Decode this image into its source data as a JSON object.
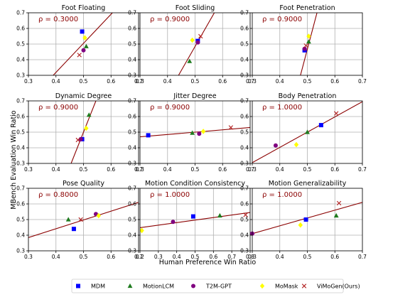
{
  "figure": {
    "xlabel": "Human Preference Win Ratio",
    "ylabel": "MBench Evaluation Win Ratio"
  },
  "legend": [
    {
      "name": "MDM",
      "marker": "square",
      "color": "#0000ff"
    },
    {
      "name": "MotionLCM",
      "marker": "triangle",
      "color": "#1e7b1e"
    },
    {
      "name": "T2M-GPT",
      "marker": "circle",
      "color": "#800080"
    },
    {
      "name": "MoMask",
      "marker": "diamond",
      "color": "#ffff00"
    },
    {
      "name": "ViMoGen(Ours)",
      "marker": "x",
      "color": "#b22222"
    }
  ],
  "line_color": "#8b0000",
  "chart_data": [
    {
      "type": "scatter",
      "title": "Foot Floating",
      "rho": "ρ = 0.3000",
      "xlim": [
        0.3,
        0.7
      ],
      "ylim": [
        0.3,
        0.7
      ],
      "xticks": [
        "0.3",
        "0.4",
        "0.5",
        "0.6",
        "0.7"
      ],
      "yticks": [
        "0.3",
        "0.4",
        "0.5",
        "0.6",
        "0.7"
      ],
      "points": {
        "MDM": [
          0.495,
          0.58
        ],
        "MotionLCM": [
          0.51,
          0.485
        ],
        "T2M-GPT": [
          0.5,
          0.46
        ],
        "MoMask": [
          0.505,
          0.54
        ],
        "ViMoGen(Ours)": [
          0.485,
          0.43
        ]
      },
      "fit": [
        [
          0.39,
          0.3
        ],
        [
          0.605,
          0.7
        ]
      ]
    },
    {
      "type": "scatter",
      "title": "Foot Sliding",
      "rho": "ρ = 0.9000",
      "xlim": [
        0.3,
        0.7
      ],
      "ylim": [
        0.3,
        0.7
      ],
      "xticks": [
        "0.3",
        "0.4",
        "0.5",
        "0.6",
        "0.7"
      ],
      "yticks": [
        "0.3",
        "0.4",
        "0.5",
        "0.6",
        "0.7"
      ],
      "points": {
        "MDM": [
          0.51,
          0.52
        ],
        "MotionLCM": [
          0.48,
          0.39
        ],
        "T2M-GPT": [
          0.51,
          0.51
        ],
        "MoMask": [
          0.49,
          0.525
        ],
        "ViMoGen(Ours)": [
          0.52,
          0.55
        ]
      },
      "fit": [
        [
          0.44,
          0.3
        ],
        [
          0.57,
          0.7
        ]
      ]
    },
    {
      "type": "scatter",
      "title": "Foot Penetration",
      "rho": "ρ = 0.9000",
      "xlim": [
        0.3,
        0.7
      ],
      "ylim": [
        0.3,
        0.7
      ],
      "xticks": [
        "0.3",
        "0.4",
        "0.5",
        "0.6",
        "0.7"
      ],
      "yticks": [
        "0.3",
        "0.4",
        "0.5",
        "0.6",
        "0.7"
      ],
      "points": {
        "MDM": [
          0.49,
          0.46
        ],
        "MotionLCM": [
          0.505,
          0.515
        ],
        "T2M-GPT": [
          0.49,
          0.47
        ],
        "MoMask": [
          0.505,
          0.55
        ],
        "ViMoGen(Ours)": [
          0.495,
          0.49
        ]
      },
      "fit": [
        [
          0.475,
          0.3
        ],
        [
          0.535,
          0.7
        ]
      ]
    },
    {
      "type": "scatter",
      "title": "Dynamic Degree",
      "rho": "ρ = 0.9000",
      "xlim": [
        0.3,
        0.7
      ],
      "ylim": [
        0.3,
        0.7
      ],
      "xticks": [
        "0.3",
        "0.4",
        "0.5",
        "0.6",
        "0.7"
      ],
      "yticks": [
        "0.3",
        "0.4",
        "0.5",
        "0.6",
        "0.7"
      ],
      "points": {
        "MDM": [
          0.495,
          0.455
        ],
        "MotionLCM": [
          0.52,
          0.61
        ],
        "T2M-GPT": [
          0.49,
          0.455
        ],
        "MoMask": [
          0.51,
          0.525
        ],
        "ViMoGen(Ours)": [
          0.48,
          0.45
        ]
      },
      "fit": [
        [
          0.455,
          0.3
        ],
        [
          0.545,
          0.7
        ]
      ]
    },
    {
      "type": "scatter",
      "title": "Jitter Degree",
      "rho": "ρ = 0.9000",
      "xlim": [
        0.3,
        0.7
      ],
      "ylim": [
        0.3,
        0.7
      ],
      "xticks": [
        "0.3",
        "0.4",
        "0.5",
        "0.6",
        "0.7"
      ],
      "yticks": [
        "0.3",
        "0.4",
        "0.5",
        "0.6",
        "0.7"
      ],
      "points": {
        "MDM": [
          0.33,
          0.48
        ],
        "MotionLCM": [
          0.49,
          0.495
        ],
        "T2M-GPT": [
          0.515,
          0.49
        ],
        "MoMask": [
          0.53,
          0.505
        ],
        "ViMoGen(Ours)": [
          0.63,
          0.53
        ]
      },
      "fit": [
        [
          0.3,
          0.47
        ],
        [
          0.7,
          0.53
        ]
      ]
    },
    {
      "type": "scatter",
      "title": "Body Penetration",
      "rho": "ρ = 1.0000",
      "xlim": [
        0.3,
        0.7
      ],
      "ylim": [
        0.3,
        0.7
      ],
      "xticks": [
        "0.3",
        "0.4",
        "0.5",
        "0.6",
        "0.7"
      ],
      "yticks": [
        "0.3",
        "0.4",
        "0.5",
        "0.6",
        "0.7"
      ],
      "points": {
        "MDM": [
          0.55,
          0.545
        ],
        "MotionLCM": [
          0.5,
          0.5
        ],
        "T2M-GPT": [
          0.385,
          0.415
        ],
        "MoMask": [
          0.46,
          0.42
        ],
        "ViMoGen(Ours)": [
          0.605,
          0.62
        ]
      },
      "fit": [
        [
          0.3,
          0.305
        ],
        [
          0.7,
          0.695
        ]
      ]
    },
    {
      "type": "scatter",
      "title": "Pose Quality",
      "rho": "ρ = 0.8000",
      "xlim": [
        0.3,
        0.7
      ],
      "ylim": [
        0.3,
        0.7
      ],
      "xticks": [
        "0.3",
        "0.4",
        "0.5",
        "0.6",
        "0.7"
      ],
      "yticks": [
        "0.3",
        "0.4",
        "0.5",
        "0.6",
        "0.7"
      ],
      "points": {
        "MDM": [
          0.465,
          0.44
        ],
        "MotionLCM": [
          0.445,
          0.5
        ],
        "T2M-GPT": [
          0.545,
          0.535
        ],
        "MoMask": [
          0.555,
          0.525
        ],
        "ViMoGen(Ours)": [
          0.49,
          0.5
        ]
      },
      "fit": [
        [
          0.3,
          0.385
        ],
        [
          0.7,
          0.61
        ]
      ]
    },
    {
      "type": "scatter",
      "title": "Motion Condition Consistency",
      "rho": "ρ = 1.0000",
      "xlim": [
        0.2,
        0.8
      ],
      "ylim": [
        0.3,
        0.7
      ],
      "xticks": [
        "0.2",
        "0.3",
        "0.4",
        "0.5",
        "0.6",
        "0.7",
        "0.8"
      ],
      "yticks": [
        "0.3",
        "0.4",
        "0.5",
        "0.6",
        "0.7"
      ],
      "points": {
        "MDM": [
          0.49,
          0.52
        ],
        "MotionLCM": [
          0.635,
          0.525
        ],
        "T2M-GPT": [
          0.38,
          0.485
        ],
        "MoMask": [
          0.21,
          0.43
        ],
        "ViMoGen(Ours)": [
          0.775,
          0.53
        ]
      },
      "fit": [
        [
          0.2,
          0.448
        ],
        [
          0.8,
          0.545
        ]
      ]
    },
    {
      "type": "scatter",
      "title": "Motion Generalizability",
      "rho": "ρ = 1.0000",
      "xlim": [
        0.3,
        0.7
      ],
      "ylim": [
        0.3,
        0.7
      ],
      "xticks": [
        "0.3",
        "0.4",
        "0.5",
        "0.6",
        "0.7"
      ],
      "yticks": [
        "0.3",
        "0.4",
        "0.5",
        "0.6",
        "0.7"
      ],
      "points": {
        "MDM": [
          0.495,
          0.5
        ],
        "MotionLCM": [
          0.605,
          0.525
        ],
        "T2M-GPT": [
          0.3,
          0.41
        ],
        "MoMask": [
          0.475,
          0.465
        ],
        "ViMoGen(Ours)": [
          0.615,
          0.605
        ]
      },
      "fit": [
        [
          0.3,
          0.41
        ],
        [
          0.7,
          0.61
        ]
      ]
    }
  ]
}
